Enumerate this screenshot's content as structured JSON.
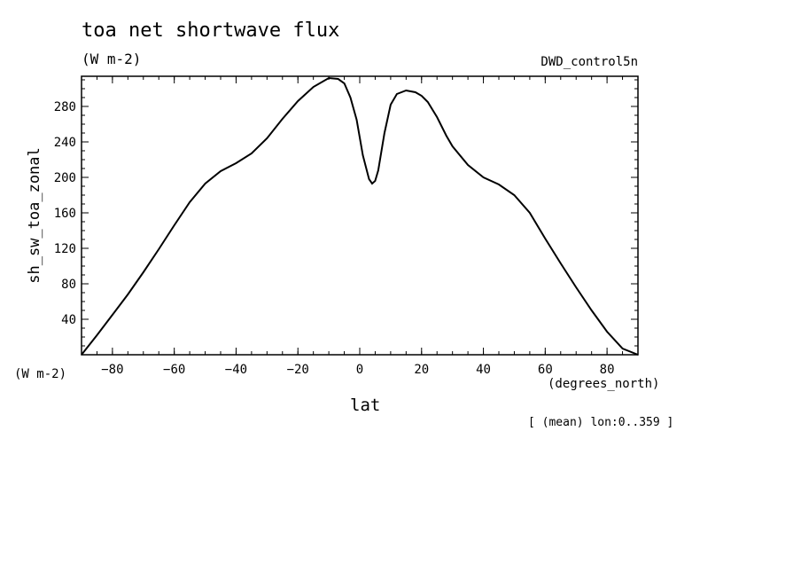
{
  "header": {
    "title": "toa net shortwave flux",
    "units": "(W m-2)",
    "dataset": "DWD_control5n"
  },
  "axes": {
    "y_units": "(W m-2)",
    "x_units": "(degrees_north)",
    "x_label": "lat",
    "y_label": "sh_sw_toa_zonal"
  },
  "footer": {
    "note": "[ (mean) lon:0..359 ]"
  },
  "chart_data": {
    "type": "line",
    "xlabel": "lat",
    "ylabel": "sh_sw_toa_zonal",
    "xlim": [
      -90,
      90
    ],
    "ylim": [
      0,
      314
    ],
    "xticks": [
      -80,
      -60,
      -40,
      -20,
      0,
      20,
      40,
      60,
      80
    ],
    "yticks": [
      40,
      80,
      120,
      160,
      200,
      240,
      280
    ],
    "grid": false,
    "series": [
      {
        "x": [
          -90,
          -85,
          -80,
          -75,
          -70,
          -65,
          -60,
          -55,
          -50,
          -45,
          -40,
          -35,
          -30,
          -25,
          -20,
          -15,
          -10,
          -7,
          -5,
          -3,
          -1,
          1,
          3,
          4,
          5,
          6,
          8,
          10,
          12,
          15,
          18,
          20,
          22,
          25,
          28,
          30,
          35,
          40,
          45,
          50,
          55,
          60,
          65,
          70,
          75,
          80,
          85,
          90
        ],
        "y": [
          0,
          22,
          45,
          68,
          93,
          119,
          146,
          172,
          193,
          207,
          216,
          227,
          244,
          266,
          286,
          302,
          312,
          311,
          306,
          290,
          265,
          225,
          198,
          193,
          196,
          208,
          250,
          282,
          294,
          298,
          296,
          292,
          285,
          268,
          247,
          235,
          214,
          200,
          192,
          180,
          160,
          131,
          103,
          76,
          50,
          26,
          7,
          0
        ]
      }
    ]
  }
}
